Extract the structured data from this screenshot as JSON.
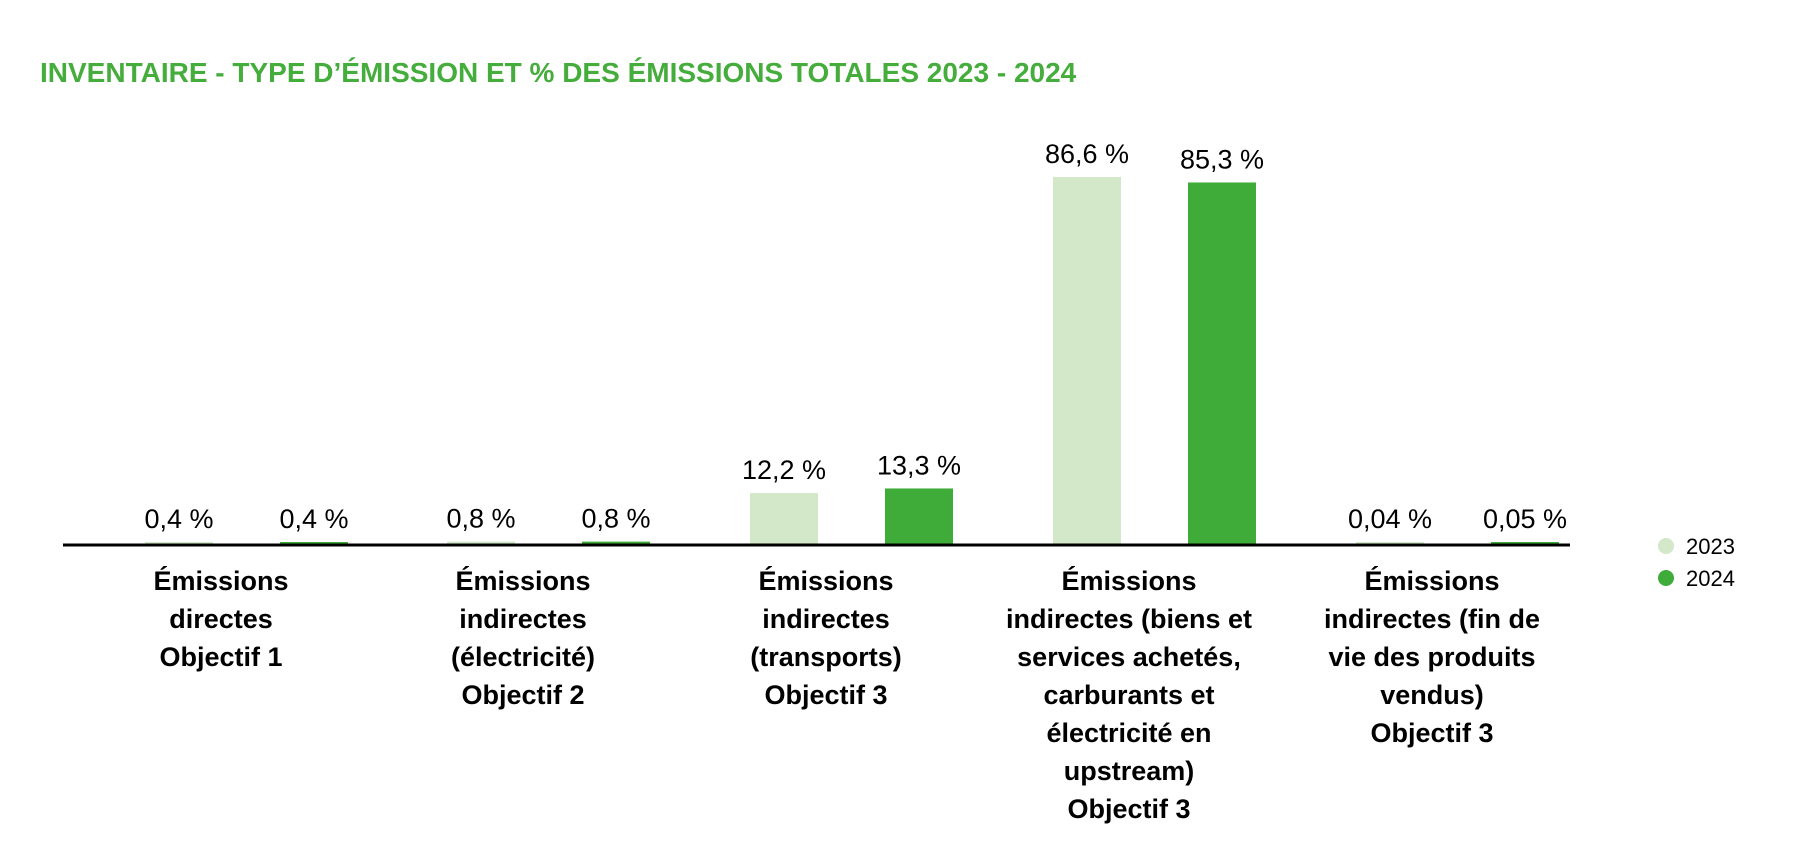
{
  "chart_data": {
    "type": "bar",
    "title": "INVENTAIRE - TYPE D’ÉMISSION ET % DES ÉMISSIONS TOTALES 2023 - 2024",
    "xlabel": "",
    "ylabel": "",
    "ylim": [
      0,
      100
    ],
    "grid": false,
    "legend_position": "right",
    "categories": [
      [
        "Émissions",
        "directes",
        "Objectif 1"
      ],
      [
        "Émissions",
        "indirectes",
        "(électricité)",
        "Objectif 2"
      ],
      [
        "Émissions",
        "indirectes",
        "(transports)",
        "Objectif 3"
      ],
      [
        "Émissions",
        "indirectes (biens et",
        "services achetés,",
        "carburants et",
        "électricité en",
        "upstream)",
        "Objectif 3"
      ],
      [
        "Émissions",
        "indirectes (fin de",
        "vie des produits",
        "vendus)",
        "Objectif 3"
      ]
    ],
    "series": [
      {
        "name": "2023",
        "color": "#d3e8c8",
        "values": [
          0.4,
          0.8,
          12.2,
          86.6,
          0.04
        ],
        "labels": [
          "0,4 %",
          "0,8 %",
          "12,2 %",
          "86,6 %",
          "0,04 %"
        ]
      },
      {
        "name": "2024",
        "color": "#3fab38",
        "values": [
          0.4,
          0.8,
          13.3,
          85.3,
          0.05
        ],
        "labels": [
          "0,4 %",
          "0,8 %",
          "13,3 %",
          "85,3 %",
          "0,05 %"
        ]
      }
    ],
    "colors": {
      "title": "#45ad3c",
      "axis": "#000000"
    }
  }
}
